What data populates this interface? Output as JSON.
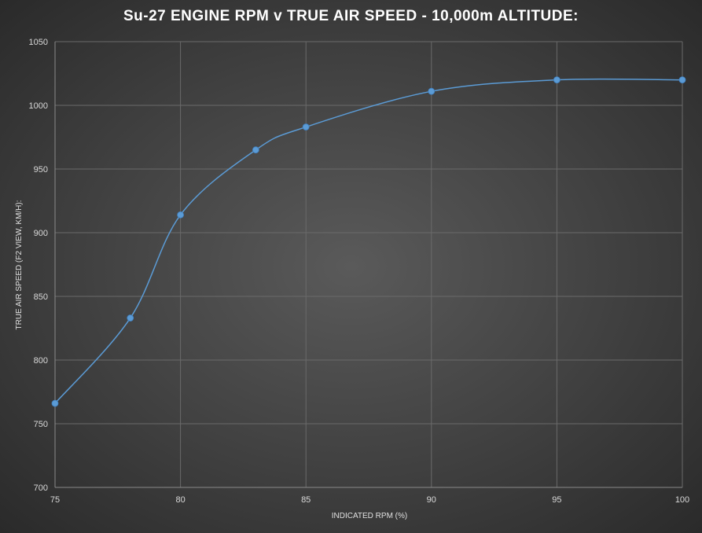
{
  "chart_data": {
    "type": "line",
    "title": "Su-27 ENGINE RPM v TRUE AIR SPEED - 10,000m ALTITUDE:",
    "xlabel": "INDICATED RPM (%)",
    "ylabel": "TRUE AIR SPEED (F2 VIEW, KM/H):",
    "xlim": [
      75,
      100
    ],
    "ylim": [
      700,
      1050
    ],
    "x_ticks": [
      75,
      80,
      85,
      90,
      95,
      100
    ],
    "y_ticks": [
      700,
      750,
      800,
      850,
      900,
      950,
      1000,
      1050
    ],
    "grid": true,
    "smooth": true,
    "series": [
      {
        "x": [
          75,
          78,
          80,
          83,
          85,
          90,
          95,
          100
        ],
        "values": [
          766,
          833,
          914,
          965,
          983,
          1011,
          1020,
          1020
        ],
        "color": "#5b9bd5"
      }
    ]
  }
}
